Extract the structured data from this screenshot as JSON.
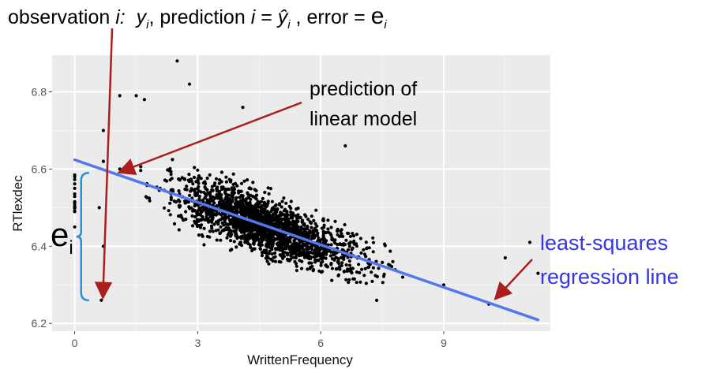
{
  "title": {
    "part1": "observation ",
    "i1": "i:",
    "y": "y",
    "sub_i1": "i",
    "part2": ", prediction ",
    "i2": "i",
    "part3": " = ",
    "yhat": "ŷ",
    "sub_i2": "i",
    "part4": " , error = ",
    "e": "e",
    "sub_i3": "i"
  },
  "chart_data": {
    "type": "scatter",
    "title": "",
    "xlabel": "WrittenFrequency",
    "ylabel": "RTlexdec",
    "xlim": [
      -0.55,
      11.6
    ],
    "ylim": [
      6.18,
      6.895
    ],
    "x_ticks": [
      0,
      3,
      6,
      9
    ],
    "x_tick_labels": [
      "0",
      "3",
      "6",
      "9"
    ],
    "y_ticks": [
      6.2,
      6.4,
      6.6,
      6.8
    ],
    "y_tick_labels": [
      "6.2",
      "6.4",
      "6.6",
      "6.8"
    ],
    "grid": true,
    "background": "#ebebeb",
    "point_color": "#000000",
    "regression_line": {
      "intercept": 6.624,
      "slope": -0.0367,
      "x_range": [
        0,
        11.3
      ],
      "color": "#5577ee"
    },
    "points_sample": [
      [
        0,
        6.58
      ],
      [
        0,
        6.55
      ],
      [
        0,
        6.5
      ],
      [
        0,
        6.45
      ],
      [
        0.6,
        6.5
      ],
      [
        0.65,
        6.26
      ],
      [
        0.7,
        6.7
      ],
      [
        0.7,
        6.62
      ],
      [
        0.7,
        6.4
      ],
      [
        1.1,
        6.79
      ],
      [
        1.1,
        6.6
      ],
      [
        1.5,
        6.79
      ],
      [
        1.7,
        6.78
      ],
      [
        2.5,
        6.88
      ],
      [
        2.8,
        6.82
      ],
      [
        4.1,
        6.76
      ],
      [
        6.6,
        6.66
      ],
      [
        10.1,
        6.25
      ],
      [
        10.5,
        6.37
      ],
      [
        11.1,
        6.41
      ],
      [
        11.3,
        6.33
      ],
      [
        3,
        6.55
      ],
      [
        4,
        6.45
      ],
      [
        5,
        6.4
      ],
      [
        6,
        6.38
      ],
      [
        7,
        6.34
      ],
      [
        8,
        6.32
      ],
      [
        9,
        6.3
      ]
    ],
    "annotations": [
      {
        "text_lines": [
          "prediction of",
          "linear model"
        ],
        "color": "#000000",
        "arrow_to": [
          1,
          6.587
        ]
      },
      {
        "text_lines": [
          "least-squares",
          "regression line"
        ],
        "color": "#3535e6",
        "arrow_to": [
          10.1,
          6.255
        ]
      },
      {
        "text": "e",
        "subscript": "i",
        "color": "#000000",
        "brace_from_y": 6.26,
        "brace_to_y": 6.59,
        "brace_x": 0.35
      },
      {
        "arrow_from_title_to": [
          0.65,
          6.258
        ],
        "color": "#aa1e1e"
      }
    ]
  }
}
